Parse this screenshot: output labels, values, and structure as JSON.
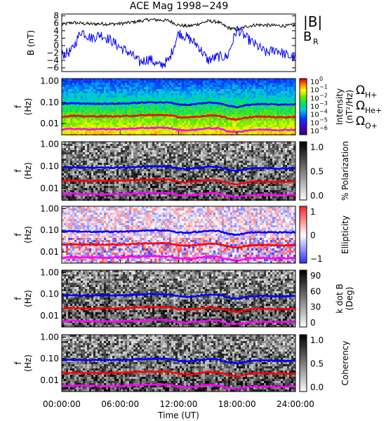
{
  "chart_data": [
    {
      "type": "line",
      "title": "ACE Mag 1998−249",
      "ylabel": "B (nT)",
      "ylim": [
        -7,
        8.5
      ],
      "yticks": [
        "8",
        "6",
        "4",
        "2",
        "0",
        "−2",
        "−4",
        "−6"
      ],
      "ytick_values": [
        8,
        6,
        4,
        2,
        0,
        -2,
        -4,
        -6
      ],
      "series": [
        {
          "name": "|B|",
          "color": "#000000",
          "x_hours": [
            0,
            1,
            2,
            3,
            4,
            5,
            6,
            7,
            8,
            9,
            10,
            11,
            12,
            13,
            14,
            15,
            16,
            17,
            18,
            19,
            20,
            21,
            22,
            23,
            24
          ],
          "values": [
            5.6,
            6.2,
            6.0,
            5.8,
            5.9,
            5.8,
            5.9,
            6.2,
            6.6,
            7.0,
            6.9,
            6.7,
            5.5,
            5.2,
            5.8,
            6.6,
            6.4,
            4.9,
            4.2,
            5.2,
            5.6,
            5.5,
            5.4,
            5.3,
            5.5
          ]
        },
        {
          "name": "B",
          "subscript": "R",
          "color": "#0000ff",
          "x_hours": [
            0,
            1,
            2,
            3,
            4,
            5,
            6,
            7,
            8,
            9,
            10,
            11,
            12,
            13,
            14,
            15,
            16,
            17,
            18,
            19,
            20,
            21,
            22,
            23,
            24
          ],
          "values": [
            -2.5,
            -1.5,
            4.0,
            2.0,
            3.0,
            1.5,
            -0.5,
            -2.0,
            -4.5,
            -3.5,
            -5.5,
            -4.0,
            3.5,
            2.0,
            0.0,
            -4.0,
            -3.0,
            -3.0,
            4.5,
            2.0,
            0.0,
            -2.0,
            -1.0,
            -2.5,
            -3.5
          ]
        }
      ]
    },
    {
      "type": "heatmap",
      "ylabel": "f (Hz)",
      "yscale": "log",
      "ylim": [
        0.003,
        1.3
      ],
      "yticks": [
        "1.00",
        "0.10",
        "0.01"
      ],
      "ytick_values": [
        1.0,
        0.1,
        0.01
      ],
      "colormap": "rainbow",
      "colorbar": {
        "label": "Intensity (nT²/Hz)",
        "tick_base": "10",
        "tick_exponents": [
          "0",
          "−1",
          "−2",
          "−3",
          "−4",
          "−5",
          "−6"
        ]
      },
      "legend": [
        {
          "symbol": "Ω",
          "subscript": "H+",
          "color": "#0000ff"
        },
        {
          "symbol": "Ω",
          "subscript": "He+",
          "color": "#ff0000"
        },
        {
          "symbol": "Ω",
          "subscript": "O+",
          "color": "#ff00ff"
        }
      ]
    },
    {
      "type": "heatmap",
      "ylabel": "f (Hz)",
      "yscale": "log",
      "ylim": [
        0.003,
        1.3
      ],
      "yticks": [
        "1.00",
        "0.10",
        "0.01"
      ],
      "colormap": "grayscale",
      "colorbar": {
        "label": "% Polarization",
        "ticks": [
          "1.0",
          "0.5",
          "0.0"
        ],
        "range": [
          0,
          1
        ]
      }
    },
    {
      "type": "heatmap",
      "ylabel": "f (Hz)",
      "yscale": "log",
      "ylim": [
        0.003,
        1.3
      ],
      "yticks": [
        "1.00",
        "0.10",
        "0.01"
      ],
      "colormap": "blue-white-red",
      "colorbar": {
        "label": "Ellipticity",
        "ticks": [
          "1",
          "0",
          "−1"
        ],
        "range": [
          -1,
          1
        ]
      }
    },
    {
      "type": "heatmap",
      "ylabel": "f (Hz)",
      "yscale": "log",
      "ylim": [
        0.003,
        1.3
      ],
      "yticks": [
        "1.00",
        "0.10",
        "0.01"
      ],
      "colormap": "grayscale",
      "colorbar": {
        "label": "k dot B (Deg)",
        "ticks": [
          "90",
          "60",
          "30",
          "0"
        ],
        "range": [
          0,
          90
        ]
      }
    },
    {
      "type": "heatmap",
      "ylabel": "f (Hz)",
      "yscale": "log",
      "ylim": [
        0.003,
        1.3
      ],
      "yticks": [
        "1.00",
        "0.10",
        "0.01"
      ],
      "colormap": "grayscale",
      "colorbar": {
        "label": "Coherency",
        "ticks": [
          "1.0",
          "0.5",
          "0.0"
        ],
        "range": [
          0,
          1
        ]
      }
    }
  ],
  "gyrofrequency_lines": {
    "x_hours": [
      0,
      1,
      2,
      3,
      4,
      5,
      6,
      7,
      8,
      9,
      10,
      11,
      12,
      13,
      14,
      15,
      16,
      17,
      18,
      19,
      20,
      21,
      22,
      23,
      24
    ],
    "H+": [
      0.085,
      0.09,
      0.088,
      0.086,
      0.087,
      0.086,
      0.087,
      0.09,
      0.095,
      0.1,
      0.1,
      0.098,
      0.08,
      0.075,
      0.085,
      0.096,
      0.094,
      0.07,
      0.06,
      0.075,
      0.083,
      0.082,
      0.08,
      0.08,
      0.082
    ],
    "He+": [
      0.021,
      0.023,
      0.022,
      0.022,
      0.022,
      0.022,
      0.022,
      0.023,
      0.024,
      0.025,
      0.025,
      0.025,
      0.02,
      0.019,
      0.021,
      0.024,
      0.024,
      0.018,
      0.015,
      0.019,
      0.021,
      0.021,
      0.02,
      0.02,
      0.021
    ],
    "O+": [
      0.0053,
      0.0058,
      0.0056,
      0.0054,
      0.0055,
      0.0054,
      0.0055,
      0.0058,
      0.006,
      0.0063,
      0.0063,
      0.0062,
      0.005,
      0.0048,
      0.0053,
      0.006,
      0.006,
      0.0045,
      0.0039,
      0.0048,
      0.0052,
      0.0052,
      0.005,
      0.005,
      0.0052
    ]
  },
  "x_axis": {
    "label": "Time (UT)",
    "range_hours": [
      0,
      24
    ],
    "ticks": [
      {
        "hours": 0,
        "label": "00:00:00"
      },
      {
        "hours": 6,
        "label": "06:00:00"
      },
      {
        "hours": 12,
        "label": "12:00:00"
      },
      {
        "hours": 18,
        "label": "18:00:00"
      },
      {
        "hours": 24,
        "label": "24:00:00"
      }
    ]
  }
}
